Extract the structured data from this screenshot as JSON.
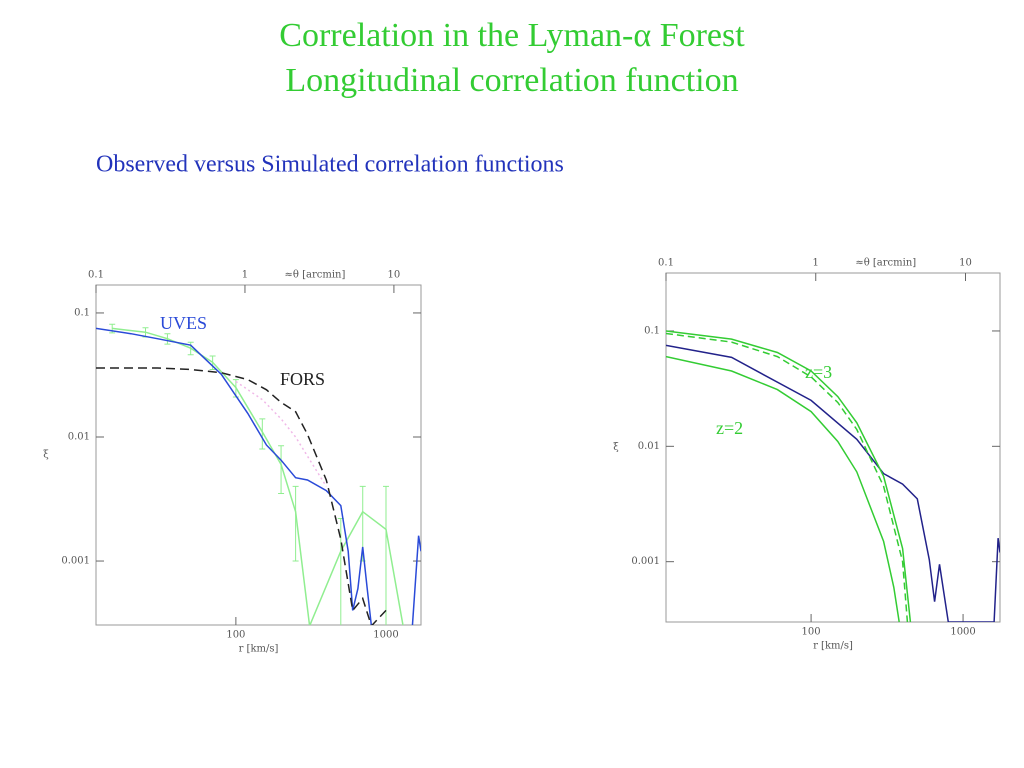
{
  "slide": {
    "title_lines": [
      "Correlation in the Lyman-α Forest",
      "Longitudinal correlation function"
    ],
    "subtitle": "Observed versus Simulated correlation functions"
  },
  "chart_data": [
    {
      "type": "line",
      "xscale": "log",
      "yscale": "log",
      "xlabel": "r [km/s]",
      "ylabel": "ξ",
      "x2label": "≈θ [arcmin]",
      "xlim": [
        11.7,
        1711
      ],
      "xticks": [
        100,
        1000
      ],
      "ylim": [
        0.000305,
        0.168
      ],
      "yticks": [
        0.001,
        0.01,
        0.1
      ],
      "x2lim": [
        0.1,
        15.2
      ],
      "x2ticks": [
        0.1,
        1,
        10
      ],
      "series": [
        {
          "color": "#90ee90",
          "x": [
            15,
            25,
            35,
            50,
            70,
            100,
            150,
            200,
            250,
            310,
            500,
            700,
            1000,
            1300
          ],
          "values": [
            0.075,
            0.07,
            0.062,
            0.052,
            0.04,
            0.025,
            0.011,
            0.006,
            0.0025,
            0.0003,
            0.0012,
            0.0025,
            0.0018,
            0.0003
          ],
          "errors": [
            0.006,
            0.006,
            0.006,
            0.006,
            0.005,
            0.004,
            0.003,
            0.0025,
            0.0015,
            null,
            0.001,
            0.0015,
            0.0022,
            null
          ]
        },
        {
          "color": "#f0b8e8",
          "dash": "2,3",
          "x": [
            100,
            150,
            200,
            250,
            300,
            400
          ],
          "values": [
            0.028,
            0.02,
            0.014,
            0.01,
            0.007,
            0.004
          ]
        },
        {
          "name": "UVES",
          "color": "#2a4ad8",
          "x": [
            11.7,
            20,
            30,
            50,
            80,
            120,
            160,
            200,
            250,
            300,
            400,
            500,
            560,
            600,
            650,
            700,
            750,
            800,
            1500,
            1650,
            1711
          ],
          "values": [
            0.075,
            0.068,
            0.062,
            0.055,
            0.032,
            0.0155,
            0.0086,
            0.0065,
            0.0047,
            0.0045,
            0.0037,
            0.0028,
            0.0012,
            0.0004,
            0.0006,
            0.0013,
            0.0006,
            0.0003,
            0.0003,
            0.0016,
            0.0012
          ]
        },
        {
          "name": "FORS",
          "color": "#222222",
          "dash": "9,5",
          "x": [
            11.7,
            30,
            50,
            80,
            120,
            160,
            200,
            250,
            300,
            400,
            500,
            600,
            700,
            800,
            1000
          ],
          "values": [
            0.036,
            0.036,
            0.035,
            0.033,
            0.029,
            0.024,
            0.019,
            0.016,
            0.0105,
            0.0045,
            0.0015,
            0.0004,
            0.0005,
            0.0003,
            0.0004
          ]
        }
      ]
    },
    {
      "type": "line",
      "xscale": "log",
      "yscale": "log",
      "xlabel": "r [km/s]",
      "ylabel": "ξ",
      "x2label": "≈θ [arcmin]",
      "xlim": [
        11.1,
        1750
      ],
      "xticks": [
        100,
        1000
      ],
      "ylim": [
        0.0003,
        0.318
      ],
      "yticks": [
        0.001,
        0.01,
        0.1
      ],
      "x2lim": [
        0.1,
        17
      ],
      "x2ticks": [
        0.1,
        1,
        10
      ],
      "series": [
        {
          "color": "#22228a",
          "x": [
            11.1,
            30,
            100,
            200,
            300,
            400,
            500,
            600,
            650,
            700,
            800,
            1600,
            1700,
            1750
          ],
          "values": [
            0.075,
            0.059,
            0.025,
            0.0115,
            0.0058,
            0.0047,
            0.0035,
            0.00104,
            0.00045,
            0.00095,
            0.0003,
            0.0003,
            0.0016,
            0.0012
          ]
        },
        {
          "name": "z=3",
          "color": "#33cc33",
          "x": [
            11.1,
            30,
            60,
            100,
            150,
            200,
            300,
            400,
            450
          ],
          "values": [
            0.1,
            0.085,
            0.065,
            0.045,
            0.027,
            0.016,
            0.0055,
            0.0013,
            0.0003
          ]
        },
        {
          "color": "#33cc33",
          "dash": "7,4",
          "x": [
            11.1,
            30,
            60,
            100,
            150,
            200,
            300,
            400,
            430
          ],
          "values": [
            0.095,
            0.08,
            0.06,
            0.04,
            0.024,
            0.014,
            0.0045,
            0.001,
            0.0003
          ]
        },
        {
          "name": "z=2",
          "color": "#33cc33",
          "x": [
            11.1,
            30,
            60,
            100,
            150,
            200,
            300,
            350,
            380
          ],
          "values": [
            0.06,
            0.045,
            0.031,
            0.02,
            0.011,
            0.006,
            0.0015,
            0.0006,
            0.0003
          ]
        }
      ]
    }
  ]
}
